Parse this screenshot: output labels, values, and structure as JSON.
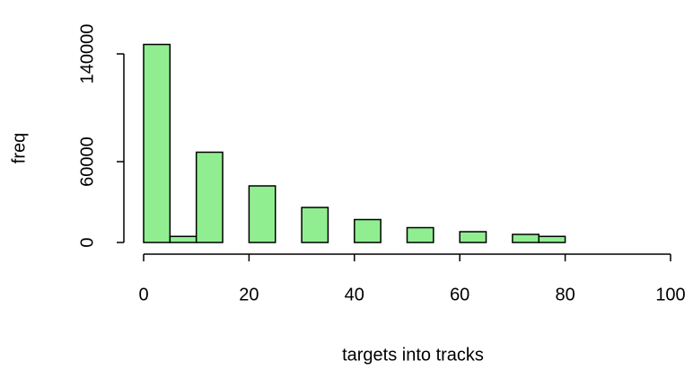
{
  "chart_data": {
    "type": "histogram",
    "x_label": "targets into tracks",
    "y_label": "freq",
    "bins": [
      0,
      5,
      10,
      15,
      20,
      25,
      30,
      35,
      40,
      45,
      50,
      55,
      60,
      65,
      70,
      75,
      80,
      85
    ],
    "values": [
      147000,
      4500,
      67000,
      0,
      42000,
      0,
      26000,
      0,
      17000,
      0,
      11000,
      0,
      8000,
      0,
      6000,
      4500,
      0
    ],
    "color": "#90ee90",
    "xlim": [
      0,
      100
    ],
    "xticks": [
      0,
      20,
      40,
      60,
      80,
      100
    ],
    "ylim": [
      0,
      140000
    ],
    "yticks": [
      0,
      60000,
      140000
    ]
  }
}
